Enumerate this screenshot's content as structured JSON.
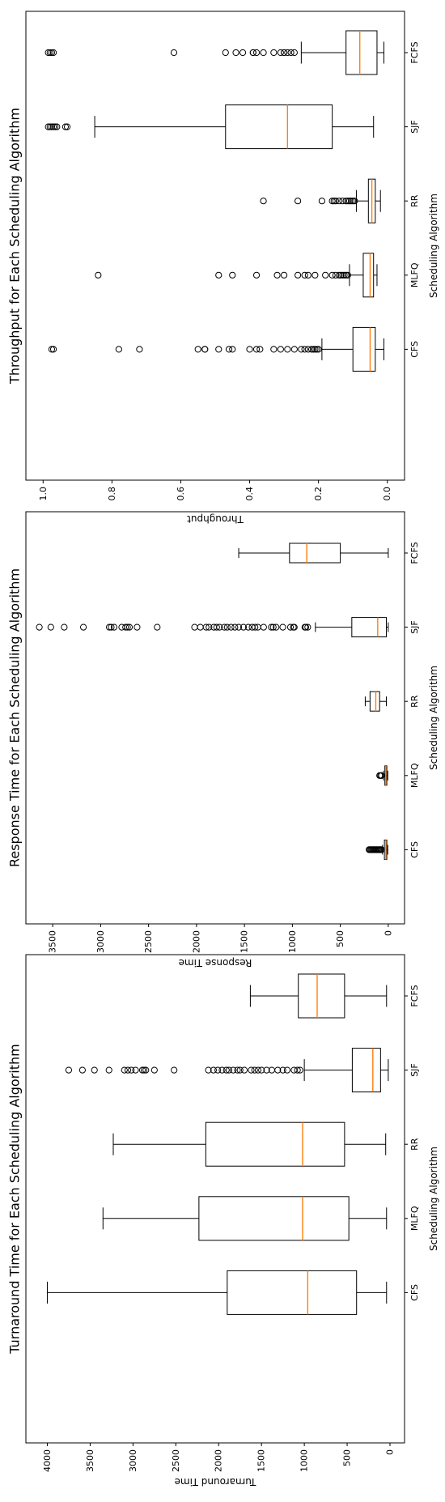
{
  "chart_data": [
    {
      "type": "box",
      "title": "Throughput for Each Scheduling Algorithm",
      "xlabel": "Scheduling Algorithm",
      "ylabel": "Throughput",
      "ylim": [
        -0.05,
        1.05
      ],
      "yticks": [
        0.0,
        0.2,
        0.4,
        0.6,
        0.8,
        1.0
      ],
      "ytick_labels": [
        "0.0",
        "0.2",
        "0.4",
        "0.6",
        "0.8",
        "1.0"
      ],
      "categories": [
        "FCFS",
        "SJF",
        "RR",
        "MLFQ",
        "CFS"
      ],
      "boxes": [
        {
          "name": "FCFS",
          "whisker_low": 0.01,
          "q1": 0.03,
          "median": 0.08,
          "q3": 0.12,
          "whisker_high": 0.25,
          "outliers": [
            0.27,
            0.28,
            0.29,
            0.3,
            0.3,
            0.31,
            0.33,
            0.36,
            0.38,
            0.39,
            0.39,
            0.42,
            0.44,
            0.47,
            0.62,
            0.97,
            0.975,
            0.98,
            0.985
          ]
        },
        {
          "name": "SJF",
          "whisker_low": 0.04,
          "q1": 0.16,
          "median": 0.29,
          "q3": 0.47,
          "whisker_high": 0.85,
          "outliers": [
            0.93,
            0.935,
            0.96,
            0.965,
            0.97,
            0.975,
            0.98,
            0.985
          ]
        },
        {
          "name": "RR",
          "whisker_low": 0.02,
          "q1": 0.035,
          "median": 0.045,
          "q3": 0.055,
          "whisker_high": 0.09,
          "outliers": [
            0.095,
            0.1,
            0.105,
            0.11,
            0.115,
            0.12,
            0.13,
            0.14,
            0.15,
            0.155,
            0.16,
            0.19,
            0.26,
            0.36
          ]
        },
        {
          "name": "MLFQ",
          "whisker_low": 0.03,
          "q1": 0.04,
          "median": 0.05,
          "q3": 0.07,
          "whisker_high": 0.11,
          "outliers": [
            0.115,
            0.12,
            0.125,
            0.13,
            0.135,
            0.14,
            0.15,
            0.16,
            0.18,
            0.21,
            0.23,
            0.24,
            0.26,
            0.3,
            0.32,
            0.38,
            0.45,
            0.49,
            0.84
          ]
        },
        {
          "name": "CFS",
          "whisker_low": 0.01,
          "q1": 0.035,
          "median": 0.05,
          "q3": 0.1,
          "whisker_high": 0.19,
          "outliers": [
            0.2,
            0.205,
            0.21,
            0.215,
            0.22,
            0.23,
            0.24,
            0.25,
            0.27,
            0.29,
            0.31,
            0.33,
            0.37,
            0.38,
            0.4,
            0.45,
            0.46,
            0.49,
            0.53,
            0.53,
            0.55,
            0.72,
            0.78,
            0.97,
            0.975
          ]
        }
      ]
    },
    {
      "type": "box",
      "title": "Response Time for Each Scheduling Algorithm",
      "xlabel": "Scheduling Algorithm",
      "ylabel": "Response Time",
      "ylim": [
        -170,
        3780
      ],
      "yticks": [
        0,
        500,
        1000,
        1500,
        2000,
        2500,
        3000,
        3500
      ],
      "ytick_labels": [
        "0",
        "500",
        "1000",
        "1500",
        "2000",
        "2500",
        "3000",
        "3500"
      ],
      "categories": [
        "FCFS",
        "SJF",
        "RR",
        "MLFQ",
        "CFS"
      ],
      "boxes": [
        {
          "name": "FCFS",
          "whisker_low": 0,
          "q1": 500,
          "median": 850,
          "q3": 1030,
          "whisker_high": 1560,
          "outliers": []
        },
        {
          "name": "SJF",
          "whisker_low": 0,
          "q1": 20,
          "median": 110,
          "q3": 380,
          "whisker_high": 760,
          "outliers": [
            840,
            860,
            870,
            980,
            990,
            1020,
            1100,
            1170,
            1200,
            1220,
            1300,
            1360,
            1390,
            1420,
            1460,
            1510,
            1560,
            1600,
            1640,
            1680,
            1710,
            1760,
            1790,
            1820,
            1870,
            1900,
            1960,
            2020,
            2410,
            2620,
            2700,
            2720,
            2740,
            2780,
            2860,
            2890,
            2910,
            3180,
            3380,
            3520,
            3640
          ]
        },
        {
          "name": "RR",
          "whisker_low": 20,
          "q1": 90,
          "median": 130,
          "q3": 190,
          "whisker_high": 240,
          "outliers": []
        },
        {
          "name": "MLFQ",
          "whisker_low": 5,
          "q1": 15,
          "median": 25,
          "q3": 35,
          "whisker_high": 50,
          "outliers": [
            70,
            80,
            90
          ]
        },
        {
          "name": "CFS",
          "whisker_low": 5,
          "q1": 15,
          "median": 25,
          "q3": 40,
          "whisker_high": 60,
          "outliers": [
            70,
            80,
            90,
            100,
            110,
            120,
            130,
            140,
            150,
            160,
            170,
            180,
            190,
            200
          ]
        }
      ]
    },
    {
      "type": "box",
      "title": "Turnaround Time for Each Scheduling Algorithm",
      "xlabel": "Scheduling Algorithm",
      "ylabel": "Turnaround Time",
      "ylim": [
        -170,
        4250
      ],
      "yticks": [
        0,
        500,
        1000,
        1500,
        2000,
        2500,
        3000,
        3500,
        4000
      ],
      "ytick_labels": [
        "0",
        "500",
        "1000",
        "1500",
        "2000",
        "2500",
        "3000",
        "3500",
        "4000"
      ],
      "categories": [
        "FCFS",
        "SJF",
        "RR",
        "MLFQ",
        "CFS"
      ],
      "boxes": [
        {
          "name": "FCFS",
          "whisker_low": 40,
          "q1": 530,
          "median": 850,
          "q3": 1070,
          "whisker_high": 1630,
          "outliers": []
        },
        {
          "name": "SJF",
          "whisker_low": 20,
          "q1": 110,
          "median": 200,
          "q3": 440,
          "whisker_high": 1000,
          "outliers": [
            1050,
            1080,
            1120,
            1200,
            1250,
            1310,
            1380,
            1440,
            1500,
            1540,
            1580,
            1620,
            1700,
            1750,
            1780,
            1830,
            1880,
            1910,
            1960,
            2010,
            2060,
            2120,
            2520,
            2750,
            2850,
            2870,
            2890,
            2970,
            3020,
            3060,
            3100,
            3280,
            3450,
            3590,
            3750
          ]
        },
        {
          "name": "RR",
          "whisker_low": 50,
          "q1": 530,
          "median": 1020,
          "q3": 2150,
          "whisker_high": 3230,
          "outliers": []
        },
        {
          "name": "MLFQ",
          "whisker_low": 40,
          "q1": 480,
          "median": 1020,
          "q3": 2230,
          "whisker_high": 3350,
          "outliers": []
        },
        {
          "name": "CFS",
          "whisker_low": 40,
          "q1": 390,
          "median": 960,
          "q3": 1900,
          "whisker_high": 4000,
          "outliers": []
        }
      ]
    }
  ],
  "colors": {
    "median": "#ff7f0e",
    "box": "#000000",
    "background": "#ffffff"
  }
}
